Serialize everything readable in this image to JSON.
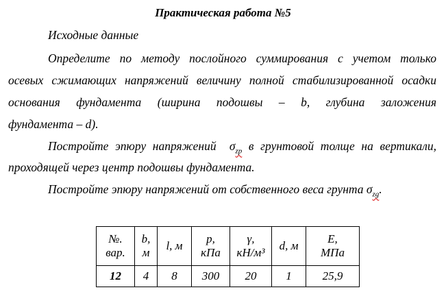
{
  "title": "Практическая работа №5",
  "lines": [
    "Исходные данные",
    "Определите по методу послойного суммирования с учетом только",
    "осевых сжимающих напряжений величину полной стабилизированной осадки",
    "основания фундамента (ширина подошвы – b, глубина заложения",
    "фундамента – d).",
    "Постройте эпюру напряжений ",
    " в грунтовой толще на вертикали,",
    "проходящей через центр подошвы фундамента.",
    "Постройте эпюру напряжений от собственного веса грунта ",
    "."
  ],
  "sigma": "σ",
  "sub_zp": "zp",
  "sub_zg": "zg",
  "table": {
    "headers": [
      [
        "№.",
        "вар."
      ],
      [
        "b,",
        "м"
      ],
      [
        "l, м"
      ],
      [
        "p,",
        "кПа"
      ],
      [
        "γ,",
        "кН/м³"
      ],
      [
        "d, м"
      ],
      [
        "E,",
        "МПа"
      ]
    ],
    "row": [
      "12",
      "4",
      "8",
      "300",
      "20",
      "1",
      "25,9"
    ]
  }
}
